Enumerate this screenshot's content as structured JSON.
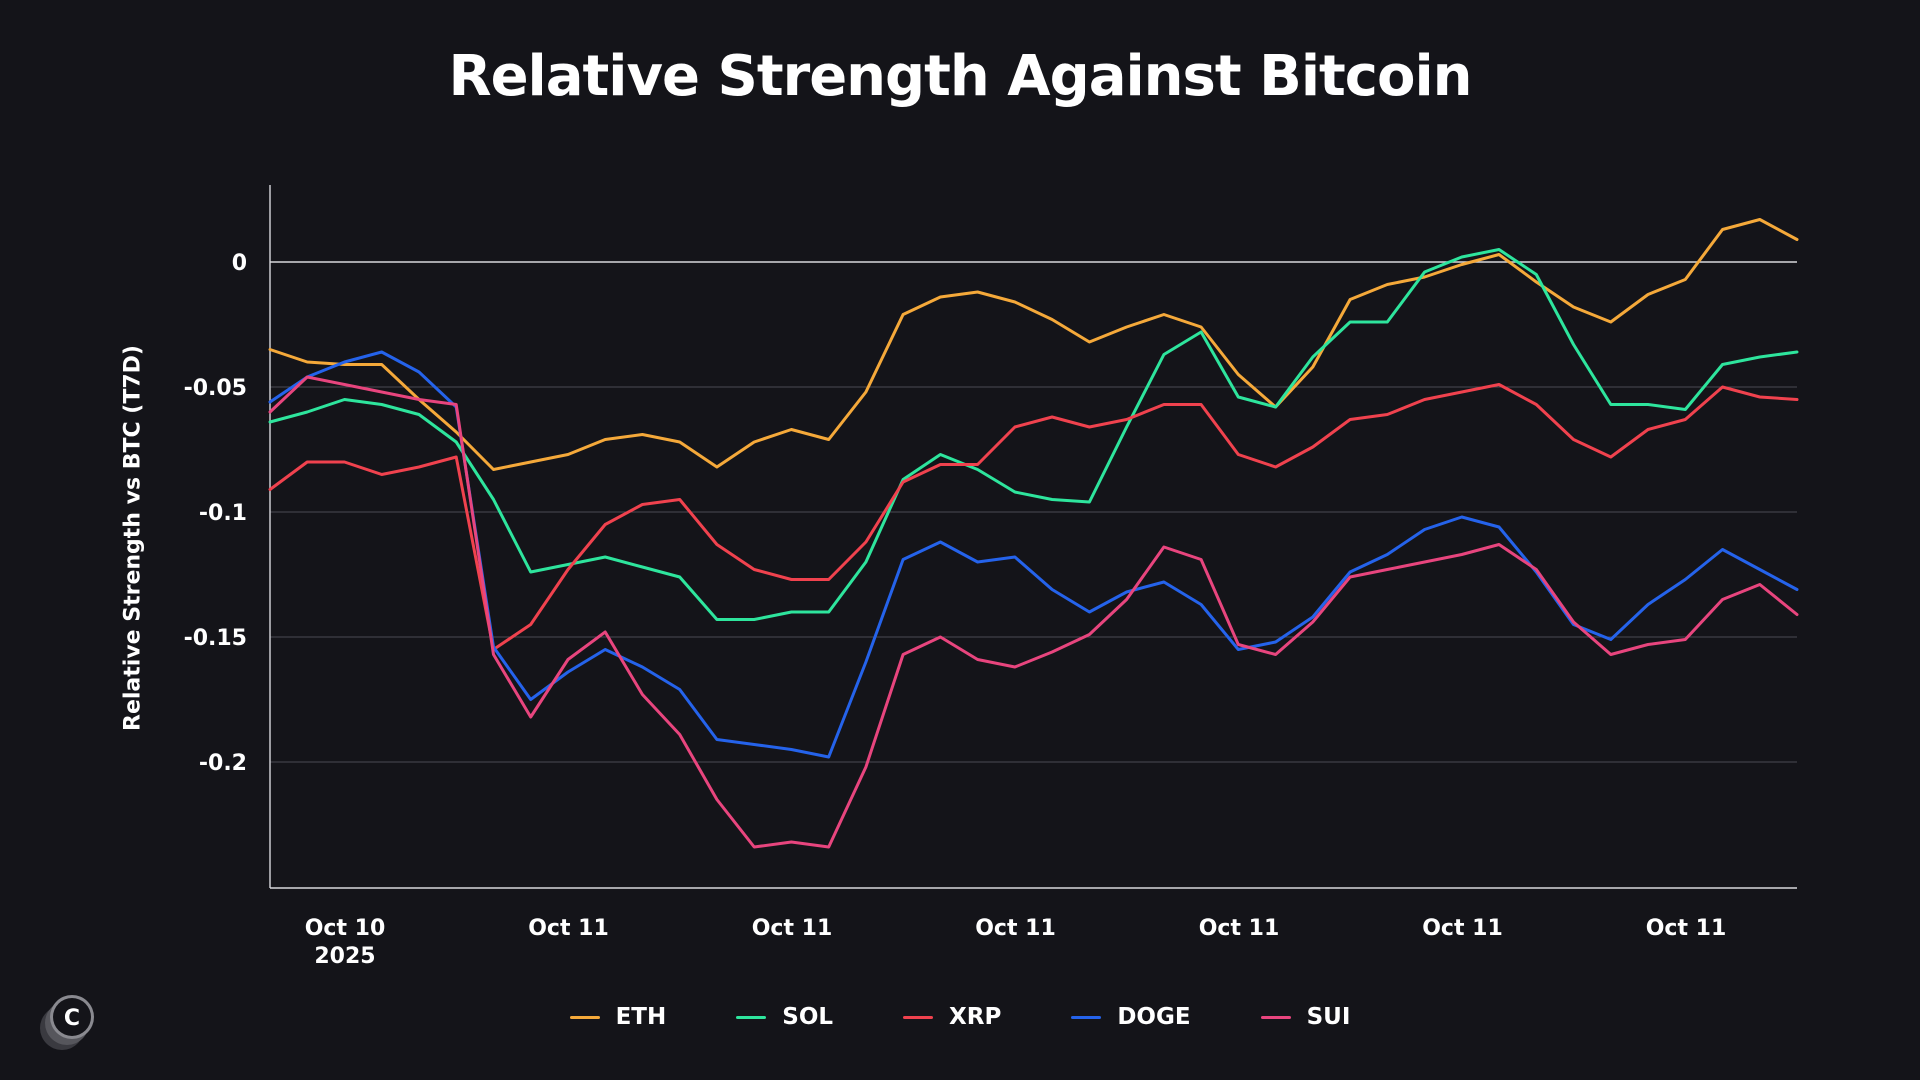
{
  "chart_data": {
    "type": "line",
    "title": "Relative Strength Against Bitcoin",
    "ylabel": "Relative Strength vs BTC (T7D)",
    "xlabel": "",
    "ylim": [
      -0.25,
      0.03
    ],
    "yticks": [
      0,
      -0.05,
      -0.1,
      -0.15,
      -0.2
    ],
    "ytick_labels": [
      "0",
      "-0.05",
      "-0.1",
      "-0.15",
      "-0.2"
    ],
    "xtick_labels": [
      [
        "Oct 10",
        "2025"
      ],
      [
        "Oct 11"
      ],
      [
        "Oct 11"
      ],
      [
        "Oct 11"
      ],
      [
        "Oct 11"
      ],
      [
        "Oct 11"
      ],
      [
        "Oct 11"
      ]
    ],
    "legend_position": "bottom",
    "grid": true,
    "series": [
      {
        "name": "ETH",
        "color": "#F5A93A",
        "values": [
          -0.035,
          -0.04,
          -0.041,
          -0.041,
          -0.055,
          -0.068,
          -0.083,
          -0.08,
          -0.077,
          -0.071,
          -0.069,
          -0.072,
          -0.082,
          -0.072,
          -0.067,
          -0.071,
          -0.052,
          -0.021,
          -0.014,
          -0.012,
          -0.016,
          -0.023,
          -0.032,
          -0.026,
          -0.021,
          -0.026,
          -0.045,
          -0.058,
          -0.042,
          -0.015,
          -0.009,
          -0.006,
          -0.001,
          0.003,
          -0.008,
          -0.018,
          -0.024,
          -0.013,
          -0.007,
          0.013,
          0.017,
          0.009
        ]
      },
      {
        "name": "SOL",
        "color": "#2EE59D",
        "values": [
          -0.064,
          -0.06,
          -0.055,
          -0.057,
          -0.061,
          -0.072,
          -0.095,
          -0.124,
          -0.121,
          -0.118,
          -0.122,
          -0.126,
          -0.143,
          -0.143,
          -0.14,
          -0.14,
          -0.12,
          -0.087,
          -0.077,
          -0.083,
          -0.092,
          -0.095,
          -0.096,
          -0.066,
          -0.037,
          -0.028,
          -0.054,
          -0.058,
          -0.038,
          -0.024,
          -0.024,
          -0.004,
          0.002,
          0.005,
          -0.005,
          -0.033,
          -0.057,
          -0.057,
          -0.059,
          -0.041,
          -0.038,
          -0.036
        ]
      },
      {
        "name": "XRP",
        "color": "#F0424E",
        "values": [
          -0.091,
          -0.08,
          -0.08,
          -0.085,
          -0.082,
          -0.078,
          -0.155,
          -0.145,
          -0.123,
          -0.105,
          -0.097,
          -0.095,
          -0.113,
          -0.123,
          -0.127,
          -0.127,
          -0.112,
          -0.088,
          -0.081,
          -0.081,
          -0.066,
          -0.062,
          -0.066,
          -0.063,
          -0.057,
          -0.057,
          -0.077,
          -0.082,
          -0.074,
          -0.063,
          -0.061,
          -0.055,
          -0.052,
          -0.049,
          -0.057,
          -0.071,
          -0.078,
          -0.067,
          -0.063,
          -0.05,
          -0.054,
          -0.055
        ]
      },
      {
        "name": "DOGE",
        "color": "#2563EB",
        "values": [
          -0.056,
          -0.046,
          -0.04,
          -0.036,
          -0.044,
          -0.058,
          -0.154,
          -0.175,
          -0.164,
          -0.155,
          -0.162,
          -0.171,
          -0.191,
          -0.193,
          -0.195,
          -0.198,
          -0.16,
          -0.119,
          -0.112,
          -0.12,
          -0.118,
          -0.131,
          -0.14,
          -0.132,
          -0.128,
          -0.137,
          -0.155,
          -0.152,
          -0.142,
          -0.124,
          -0.117,
          -0.107,
          -0.102,
          -0.106,
          -0.124,
          -0.145,
          -0.151,
          -0.137,
          -0.127,
          -0.115,
          -0.123,
          -0.131
        ]
      },
      {
        "name": "SUI",
        "color": "#E8457E",
        "values": [
          -0.06,
          -0.046,
          -0.049,
          -0.052,
          -0.055,
          -0.057,
          -0.157,
          -0.182,
          -0.159,
          -0.148,
          -0.173,
          -0.189,
          -0.215,
          -0.234,
          -0.232,
          -0.234,
          -0.202,
          -0.157,
          -0.15,
          -0.159,
          -0.162,
          -0.156,
          -0.149,
          -0.135,
          -0.114,
          -0.119,
          -0.153,
          -0.157,
          -0.144,
          -0.126,
          -0.123,
          -0.12,
          -0.117,
          -0.113,
          -0.123,
          -0.144,
          -0.157,
          -0.153,
          -0.151,
          -0.135,
          -0.129,
          -0.141
        ]
      }
    ]
  },
  "logo": {
    "letter": "C"
  }
}
